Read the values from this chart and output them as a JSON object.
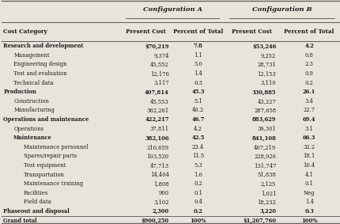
{
  "title_row": [
    "Configuration A",
    "Configuration B"
  ],
  "header_row": [
    "Cost Category",
    "Present Cost",
    "Percent of Total",
    "Present Cost",
    "Percent of Total"
  ],
  "rows": [
    [
      "Research and development",
      "$70,219",
      "7.8",
      "$53,246",
      "4.2",
      "bold",
      0
    ],
    [
      "Management",
      "9,374",
      "1.1",
      "9,252",
      "0.8",
      "normal",
      1
    ],
    [
      "Engineering design",
      "45,552",
      "5.0",
      "28,731",
      "2.3",
      "normal",
      1
    ],
    [
      "Test and evaluation",
      "12,176",
      "1.4",
      "12,153",
      "0.9",
      "normal",
      1
    ],
    [
      "Technical data",
      "3,117",
      "0.3",
      "3,110",
      "0.2",
      "normal",
      1
    ],
    [
      "Production",
      "407,814",
      "45.3",
      "330,885",
      "26.1",
      "bold",
      0
    ],
    [
      "Construction",
      "45,553",
      "5.1",
      "43,227",
      "3.4",
      "normal",
      1
    ],
    [
      "Manufacturing",
      "362,261",
      "40.2",
      "287,658",
      "22.7",
      "normal",
      1
    ],
    [
      "Operations and maintenance",
      "422,217",
      "46.7",
      "883,629",
      "69.4",
      "bold",
      0
    ],
    [
      "Operations",
      "37,811",
      "4.2",
      "39,301",
      "3.1",
      "normal",
      1
    ],
    [
      "Maintenance",
      "382,106",
      "42.5",
      "841,108",
      "66.3",
      "bold",
      1
    ],
    [
      "Maintenance personnel",
      "210,659",
      "23.4",
      "407,219",
      "32.2",
      "normal",
      2
    ],
    [
      "Spares/repair parts",
      "103,520",
      "11.5",
      "228,926",
      "18.1",
      "normal",
      2
    ],
    [
      "Test equipment",
      "47,713",
      "5.3",
      "131,747",
      "10.4",
      "normal",
      2
    ],
    [
      "Transportation",
      "14,404",
      "1.6",
      "51,838",
      "4.1",
      "normal",
      2
    ],
    [
      "Maintenance training",
      "1,808",
      "0.2",
      "2,125",
      "0.1",
      "normal",
      2
    ],
    [
      "Facilities",
      "900",
      "0.1",
      "1,021",
      "Neg",
      "normal",
      2
    ],
    [
      "Field data",
      "3,102",
      "0.4",
      "18,232",
      "1.4",
      "normal",
      2
    ],
    [
      "Phaseout and disposal",
      "2,300",
      "0.2",
      "3,220",
      "0.3",
      "bold",
      0
    ],
    [
      "Grand total",
      "$900,250",
      "100%",
      "$1,267,760",
      "100%",
      "bold",
      0
    ]
  ],
  "bg_color": "#e8e4dc",
  "text_color": "#1a1a1a",
  "line_color": "#666666",
  "indent_levels": [
    0.0,
    0.03,
    0.06
  ]
}
